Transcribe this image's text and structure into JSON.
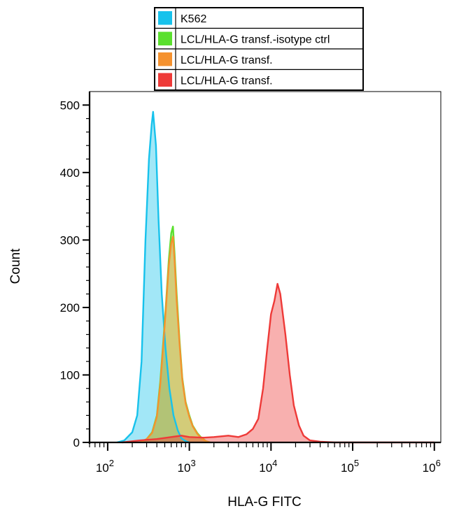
{
  "chart_data": {
    "type": "area",
    "title": "",
    "xlabel": "HLA-G FITC",
    "ylabel": "Count",
    "x_scale": "log",
    "xlim": [
      60,
      1200000
    ],
    "ylim": [
      0,
      520
    ],
    "y_ticks": [
      0,
      100,
      200,
      300,
      400,
      500
    ],
    "x_ticks": [
      {
        "base": "10",
        "exp": "2"
      },
      {
        "base": "10",
        "exp": "3"
      },
      {
        "base": "10",
        "exp": "4"
      },
      {
        "base": "10",
        "exp": "5"
      },
      {
        "base": "10",
        "exp": "6"
      }
    ],
    "x_tick_values": [
      100,
      1000,
      10000,
      100000,
      1000000
    ],
    "grid": false,
    "legend_position": "top",
    "series": [
      {
        "name": "K562",
        "color": "#17c2ec",
        "points": [
          [
            130,
            0
          ],
          [
            160,
            3
          ],
          [
            200,
            15
          ],
          [
            230,
            40
          ],
          [
            260,
            120
          ],
          [
            290,
            300
          ],
          [
            320,
            420
          ],
          [
            345,
            470
          ],
          [
            360,
            490
          ],
          [
            390,
            440
          ],
          [
            420,
            330
          ],
          [
            460,
            220
          ],
          [
            510,
            140
          ],
          [
            570,
            80
          ],
          [
            640,
            40
          ],
          [
            720,
            18
          ],
          [
            800,
            6
          ],
          [
            900,
            2
          ],
          [
            1000,
            0
          ]
        ]
      },
      {
        "name": "LCL/HLA-G transf.-isotype ctrl",
        "color": "#5ae02e",
        "points": [
          [
            250,
            0
          ],
          [
            300,
            5
          ],
          [
            350,
            15
          ],
          [
            400,
            40
          ],
          [
            440,
            90
          ],
          [
            480,
            150
          ],
          [
            520,
            210
          ],
          [
            560,
            270
          ],
          [
            600,
            310
          ],
          [
            630,
            320
          ],
          [
            660,
            280
          ],
          [
            700,
            220
          ],
          [
            760,
            150
          ],
          [
            820,
            95
          ],
          [
            900,
            60
          ],
          [
            1000,
            40
          ],
          [
            1100,
            25
          ],
          [
            1250,
            14
          ],
          [
            1400,
            7
          ],
          [
            1600,
            2
          ],
          [
            1800,
            0
          ]
        ]
      },
      {
        "name": "LCL/HLA-G transf.",
        "color": "#f5922f",
        "points": [
          [
            250,
            0
          ],
          [
            300,
            5
          ],
          [
            350,
            14
          ],
          [
            400,
            38
          ],
          [
            440,
            85
          ],
          [
            480,
            145
          ],
          [
            520,
            205
          ],
          [
            560,
            262
          ],
          [
            600,
            295
          ],
          [
            630,
            305
          ],
          [
            660,
            270
          ],
          [
            700,
            210
          ],
          [
            760,
            145
          ],
          [
            820,
            92
          ],
          [
            900,
            58
          ],
          [
            1000,
            38
          ],
          [
            1100,
            24
          ],
          [
            1250,
            13
          ],
          [
            1400,
            6
          ],
          [
            1600,
            2
          ],
          [
            1800,
            0
          ]
        ]
      },
      {
        "name": "LCL/HLA-G transf.",
        "color": "#ee3a38",
        "points": [
          [
            150,
            0
          ],
          [
            250,
            3
          ],
          [
            400,
            5
          ],
          [
            600,
            8
          ],
          [
            800,
            10
          ],
          [
            1000,
            8
          ],
          [
            1500,
            7
          ],
          [
            2000,
            8
          ],
          [
            3000,
            10
          ],
          [
            4000,
            8
          ],
          [
            5000,
            12
          ],
          [
            6000,
            20
          ],
          [
            7000,
            35
          ],
          [
            8000,
            80
          ],
          [
            9000,
            140
          ],
          [
            10000,
            190
          ],
          [
            11000,
            210
          ],
          [
            12000,
            235
          ],
          [
            13000,
            220
          ],
          [
            15000,
            160
          ],
          [
            17000,
            100
          ],
          [
            19000,
            55
          ],
          [
            22000,
            25
          ],
          [
            25000,
            10
          ],
          [
            30000,
            3
          ],
          [
            40000,
            1
          ],
          [
            60000,
            0
          ],
          [
            1000000,
            0
          ]
        ]
      }
    ]
  }
}
